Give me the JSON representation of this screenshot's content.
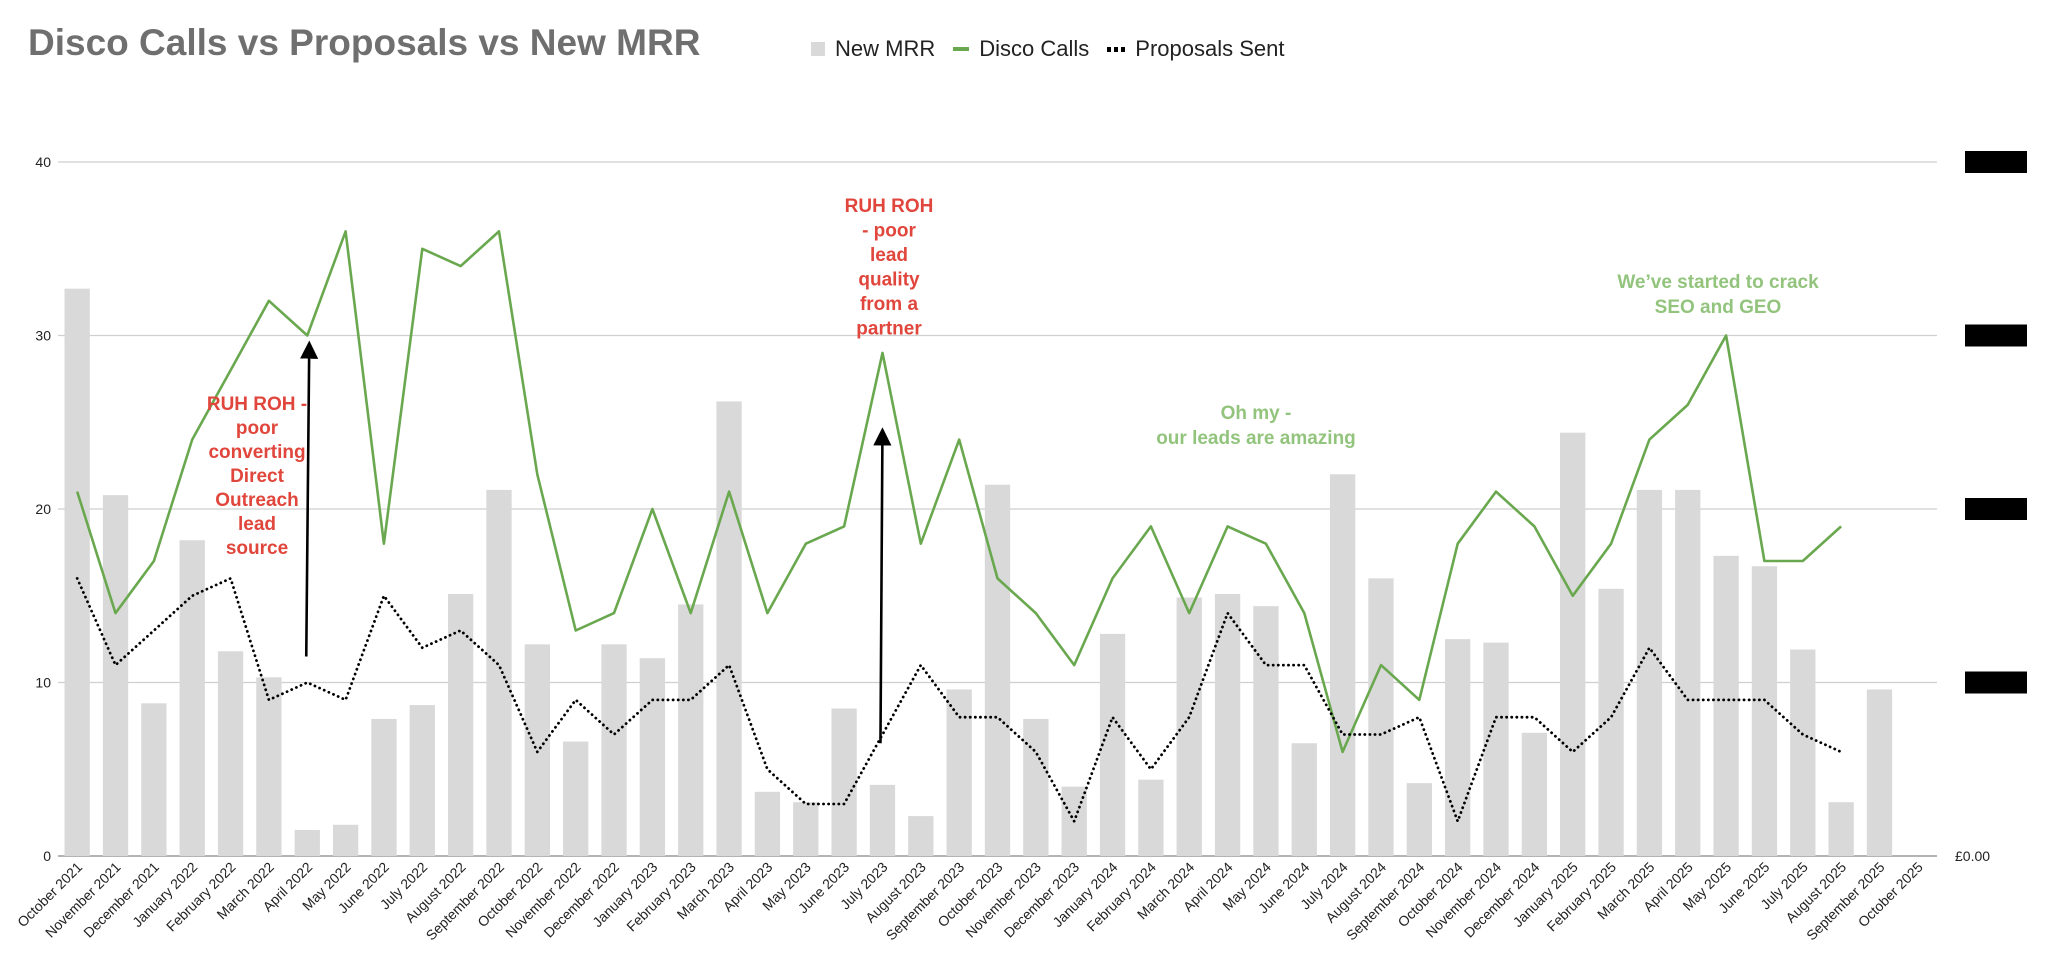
{
  "chart_data": {
    "type": "bar",
    "title": "Disco Calls vs Proposals vs New MRR",
    "categories": [
      "October 2021",
      "November 2021",
      "December 2021",
      "January 2022",
      "February 2022",
      "March 2022",
      "April 2022",
      "May 2022",
      "June 2022",
      "July 2022",
      "August 2022",
      "September 2022",
      "October 2022",
      "November 2022",
      "December 2022",
      "January 2023",
      "February 2023",
      "March 2023",
      "April 2023",
      "May 2023",
      "June 2023",
      "July 2023",
      "August 2023",
      "September 2023",
      "October 2023",
      "November 2023",
      "December 2023",
      "January 2024",
      "February 2024",
      "March 2024",
      "April 2024",
      "May 2024",
      "June 2024",
      "July 2024",
      "August 2024",
      "September 2024",
      "October 2024",
      "November 2024",
      "December 2024",
      "January 2025",
      "February 2025",
      "March 2025",
      "April 2025",
      "May 2025",
      "June 2025",
      "July 2025",
      "August 2025",
      "September 2025",
      "October 2025"
    ],
    "left_axis": {
      "ylim": [
        0,
        40
      ],
      "ticks": [
        "0",
        "10",
        "20",
        "30",
        "40"
      ]
    },
    "right_axis": {
      "bottom_label": "£0.00",
      "other_labels": "redacted"
    },
    "grid": true,
    "legend_position": "top",
    "series": [
      {
        "name": "New MRR",
        "kind": "bar",
        "axis": "right",
        "color": "#d9d9d9",
        "values": [
          32.7,
          20.8,
          8.8,
          18.2,
          11.8,
          10.3,
          1.5,
          1.8,
          7.9,
          8.7,
          15.1,
          21.1,
          12.2,
          6.6,
          12.2,
          11.4,
          14.5,
          26.2,
          3.7,
          3.1,
          8.5,
          4.1,
          2.3,
          9.6,
          21.4,
          7.9,
          4.0,
          12.8,
          4.4,
          14.9,
          15.1,
          14.4,
          6.5,
          22.0,
          16.0,
          4.2,
          12.5,
          12.3,
          7.1,
          24.4,
          15.4,
          21.1,
          21.1,
          17.3,
          16.7,
          11.9,
          3.1,
          9.6,
          0
        ]
      },
      {
        "name": "Disco Calls",
        "kind": "line",
        "axis": "left",
        "color": "#6aa84f",
        "values": [
          21,
          14,
          17,
          24,
          28,
          32,
          30,
          36,
          18,
          35,
          34,
          36,
          22,
          13,
          14,
          20,
          14,
          21,
          14,
          18,
          19,
          29,
          18,
          24,
          16,
          14,
          11,
          16,
          19,
          14,
          19,
          18,
          14,
          6,
          11,
          9,
          18,
          21,
          19,
          15,
          18,
          24,
          26,
          30,
          17,
          17,
          19,
          null,
          null
        ]
      },
      {
        "name": "Proposals Sent",
        "kind": "dotted-line",
        "axis": "left",
        "color": "#000000",
        "values": [
          16,
          11,
          13,
          15,
          16,
          9,
          10,
          9,
          15,
          12,
          13,
          11,
          6,
          9,
          7,
          9,
          9,
          11,
          5,
          3,
          3,
          7,
          11,
          8,
          8,
          6,
          2,
          8,
          5,
          8,
          14,
          11,
          11,
          7,
          7,
          8,
          2,
          8,
          8,
          6,
          8,
          12,
          9,
          9,
          9,
          7,
          6,
          null,
          null
        ]
      }
    ],
    "annotations": [
      {
        "id": "ruh-roh-1",
        "color": "#e0463c",
        "lines": [
          "RUH ROH -",
          "poor",
          "converting",
          "Direct",
          "Outreach",
          "lead",
          "source"
        ],
        "arrow": {
          "category": 6,
          "y_from": 11.5,
          "y_to": 29.5
        }
      },
      {
        "id": "ruh-roh-2",
        "color": "#e0463c",
        "lines": [
          "RUH ROH",
          "- poor",
          "lead",
          "quality",
          "from a",
          "partner"
        ],
        "arrow": {
          "category": 21,
          "y_from": 6.5,
          "y_to": 24.5
        }
      },
      {
        "id": "leads-amazing",
        "color": "#93c47d",
        "lines": [
          "Oh my -",
          "our leads are amazing"
        ]
      },
      {
        "id": "crack-seo",
        "color": "#93c47d",
        "lines": [
          "We’ve started to crack",
          "SEO and GEO"
        ]
      }
    ]
  }
}
